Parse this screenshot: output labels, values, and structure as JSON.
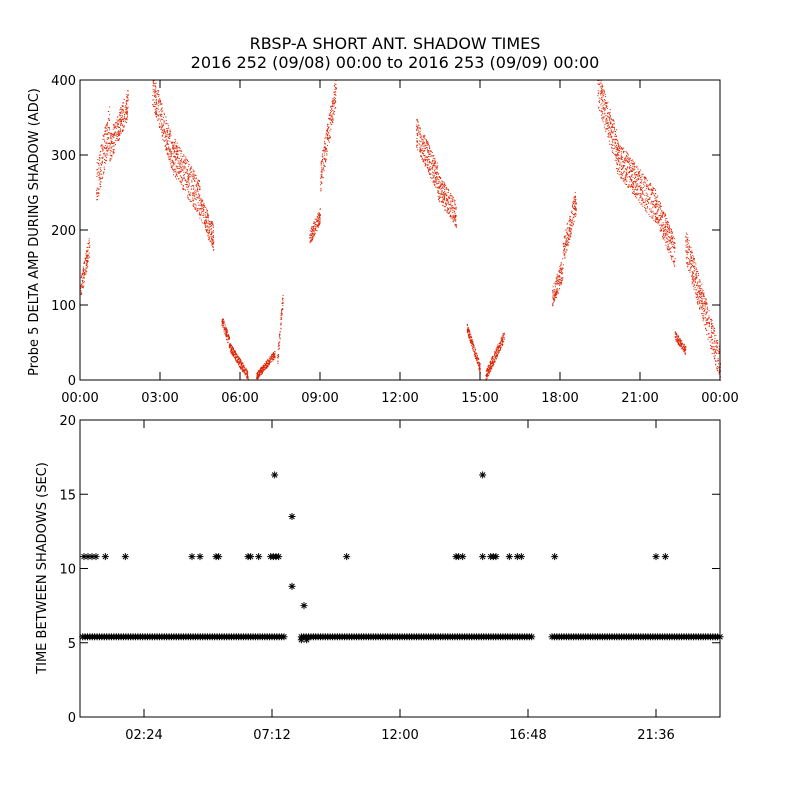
{
  "title": {
    "line1": "RBSP-A SHORT ANT. SHADOW TIMES",
    "line2": "2016 252 (09/08) 00:00 to 2016 253 (09/09) 00:00"
  },
  "chart_data": [
    {
      "type": "scatter",
      "ylabel": "Probe 5 DELTA AMP DURING SHADOW (ADC)",
      "xlabel": "",
      "x_unit": "hours since 2016-09-08 00:00",
      "xlim": [
        0,
        24
      ],
      "ylim": [
        0,
        400
      ],
      "x_tick_labels": [
        "00:00",
        "03:00",
        "06:00",
        "09:00",
        "12:00",
        "15:00",
        "18:00",
        "21:00",
        "00:00"
      ],
      "x_tick_values": [
        0,
        3,
        6,
        9,
        12,
        15,
        18,
        21,
        24
      ],
      "y_tick_labels": [
        "0",
        "100",
        "200",
        "300",
        "400"
      ],
      "y_tick_values": [
        0,
        100,
        200,
        300,
        400
      ],
      "marker_color": "#dd2200",
      "marker": "dot",
      "density": 2.2,
      "segments": [
        {
          "x": [
            0.0,
            0.35
          ],
          "y": [
            120,
            180
          ],
          "spread": 30
        },
        {
          "x": [
            0.6,
            1.1
          ],
          "y": [
            260,
            340
          ],
          "spread": 55
        },
        {
          "x": [
            1.1,
            1.8
          ],
          "y": [
            310,
            370
          ],
          "spread": 40
        },
        {
          "x": [
            2.7,
            3.5
          ],
          "y": [
            390,
            295
          ],
          "spread": 45
        },
        {
          "x": [
            3.5,
            4.5
          ],
          "y": [
            300,
            240
          ],
          "spread": 50
        },
        {
          "x": [
            4.5,
            5.0
          ],
          "y": [
            230,
            190
          ],
          "spread": 35
        },
        {
          "x": [
            5.3,
            5.6
          ],
          "y": [
            80,
            50
          ],
          "spread": 15
        },
        {
          "x": [
            5.6,
            6.3
          ],
          "y": [
            45,
            5
          ],
          "spread": 12
        },
        {
          "x": [
            6.6,
            7.3
          ],
          "y": [
            5,
            35
          ],
          "spread": 10
        },
        {
          "x": [
            7.4,
            7.6
          ],
          "y": [
            30,
            110
          ],
          "spread": 20
        },
        {
          "x": [
            8.6,
            9.0
          ],
          "y": [
            190,
            220
          ],
          "spread": 20
        },
        {
          "x": [
            9.0,
            9.6
          ],
          "y": [
            270,
            390
          ],
          "spread": 40
        },
        {
          "x": [
            12.6,
            13.4
          ],
          "y": [
            330,
            270
          ],
          "spread": 40
        },
        {
          "x": [
            13.4,
            14.1
          ],
          "y": [
            260,
            220
          ],
          "spread": 35
        },
        {
          "x": [
            14.5,
            15.0
          ],
          "y": [
            70,
            15
          ],
          "spread": 12
        },
        {
          "x": [
            15.2,
            15.9
          ],
          "y": [
            5,
            60
          ],
          "spread": 15
        },
        {
          "x": [
            17.7,
            18.1
          ],
          "y": [
            110,
            150
          ],
          "spread": 30
        },
        {
          "x": [
            18.1,
            18.6
          ],
          "y": [
            170,
            240
          ],
          "spread": 35
        },
        {
          "x": [
            19.4,
            20.1
          ],
          "y": [
            390,
            310
          ],
          "spread": 50
        },
        {
          "x": [
            20.1,
            21.6
          ],
          "y": [
            300,
            230
          ],
          "spread": 45
        },
        {
          "x": [
            21.6,
            22.3
          ],
          "y": [
            230,
            170
          ],
          "spread": 40
        },
        {
          "x": [
            22.3,
            22.7
          ],
          "y": [
            60,
            40
          ],
          "spread": 12
        },
        {
          "x": [
            22.7,
            24.0
          ],
          "y": [
            180,
            20
          ],
          "spread": 45
        }
      ]
    },
    {
      "type": "scatter",
      "ylabel": "TIME BETWEEN SHADOWS (SEC)",
      "xlabel": "",
      "x_unit": "hours since 2016-09-08 00:00",
      "xlim": [
        0,
        24
      ],
      "ylim": [
        0,
        20
      ],
      "x_tick_labels": [
        "02:24",
        "07:12",
        "12:00",
        "16:48",
        "21:36"
      ],
      "x_tick_values": [
        2.4,
        7.2,
        12.0,
        16.8,
        21.6
      ],
      "y_tick_labels": [
        "0",
        "5",
        "10",
        "15",
        "20"
      ],
      "y_tick_values": [
        0,
        5,
        10,
        15,
        20
      ],
      "marker_color": "#000000",
      "marker": "asterisk",
      "baseline": {
        "y": 5.4,
        "ranges": [
          [
            0.1,
            6.75
          ],
          [
            6.75,
            7.65
          ],
          [
            8.3,
            17.0
          ],
          [
            17.7,
            24.0
          ]
        ],
        "step": 0.09
      },
      "points": [
        {
          "x": 0.15,
          "y": 10.8
        },
        {
          "x": 0.3,
          "y": 10.8
        },
        {
          "x": 0.45,
          "y": 10.8
        },
        {
          "x": 0.6,
          "y": 10.8
        },
        {
          "x": 0.95,
          "y": 10.8
        },
        {
          "x": 1.7,
          "y": 10.8
        },
        {
          "x": 4.2,
          "y": 10.8
        },
        {
          "x": 4.5,
          "y": 10.8
        },
        {
          "x": 5.1,
          "y": 10.8
        },
        {
          "x": 5.2,
          "y": 10.8
        },
        {
          "x": 6.3,
          "y": 10.8
        },
        {
          "x": 6.4,
          "y": 10.8
        },
        {
          "x": 6.7,
          "y": 10.8
        },
        {
          "x": 7.15,
          "y": 10.8
        },
        {
          "x": 7.25,
          "y": 10.8
        },
        {
          "x": 7.35,
          "y": 10.8
        },
        {
          "x": 7.45,
          "y": 10.8
        },
        {
          "x": 7.3,
          "y": 16.3
        },
        {
          "x": 7.95,
          "y": 13.5
        },
        {
          "x": 7.95,
          "y": 8.8
        },
        {
          "x": 8.4,
          "y": 7.5
        },
        {
          "x": 8.3,
          "y": 5.2
        },
        {
          "x": 8.5,
          "y": 5.2
        },
        {
          "x": 10.0,
          "y": 10.8
        },
        {
          "x": 14.1,
          "y": 10.8
        },
        {
          "x": 14.2,
          "y": 10.8
        },
        {
          "x": 14.35,
          "y": 10.8
        },
        {
          "x": 15.1,
          "y": 16.3
        },
        {
          "x": 15.1,
          "y": 10.8
        },
        {
          "x": 15.4,
          "y": 10.8
        },
        {
          "x": 15.5,
          "y": 10.8
        },
        {
          "x": 15.6,
          "y": 10.8
        },
        {
          "x": 16.1,
          "y": 10.8
        },
        {
          "x": 16.4,
          "y": 10.8
        },
        {
          "x": 16.55,
          "y": 10.8
        },
        {
          "x": 17.8,
          "y": 10.8
        },
        {
          "x": 21.6,
          "y": 10.8
        },
        {
          "x": 21.95,
          "y": 10.8
        }
      ]
    }
  ]
}
